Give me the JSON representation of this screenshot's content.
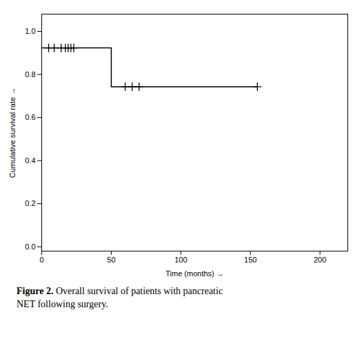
{
  "chart_data": {
    "type": "line",
    "xlabel": "Time (months)",
    "ylabel": "Cumulative survival rate",
    "caption": [
      "Figure 2. Overall survival of patients with pancreatic",
      "NET following surgery."
    ],
    "series": [
      {
        "type": "step",
        "line_style": "solid",
        "color": "#000000",
        "x": [
          0,
          5,
          50,
          50,
          155
        ],
        "values": [
          0.923,
          0.923,
          0.923,
          0.743,
          0.743
        ]
      },
      {
        "type": "scatter",
        "marker": "+",
        "color": "#000000",
        "x": [
          5,
          9,
          14,
          17,
          19,
          21,
          23
        ],
        "values": [
          0.923,
          0.923,
          0.923,
          0.923,
          0.923,
          0.923,
          0.923
        ]
      },
      {
        "type": "scatter",
        "marker": "+",
        "color": "#000000",
        "x": [
          60,
          65,
          70,
          155
        ],
        "values": [
          0.743,
          0.743,
          0.743,
          0.743
        ]
      }
    ],
    "xlim": [
      0,
      220
    ],
    "ylim": [
      -0.02,
      1.08
    ],
    "xticks": [
      0,
      50,
      100,
      150,
      200
    ],
    "yticks": [
      {
        "value": 0,
        "label": "0.0"
      },
      0.2,
      0.4,
      0.6,
      0.8,
      {
        "value": 1,
        "label": "1.0"
      }
    ],
    "grid": false
  }
}
